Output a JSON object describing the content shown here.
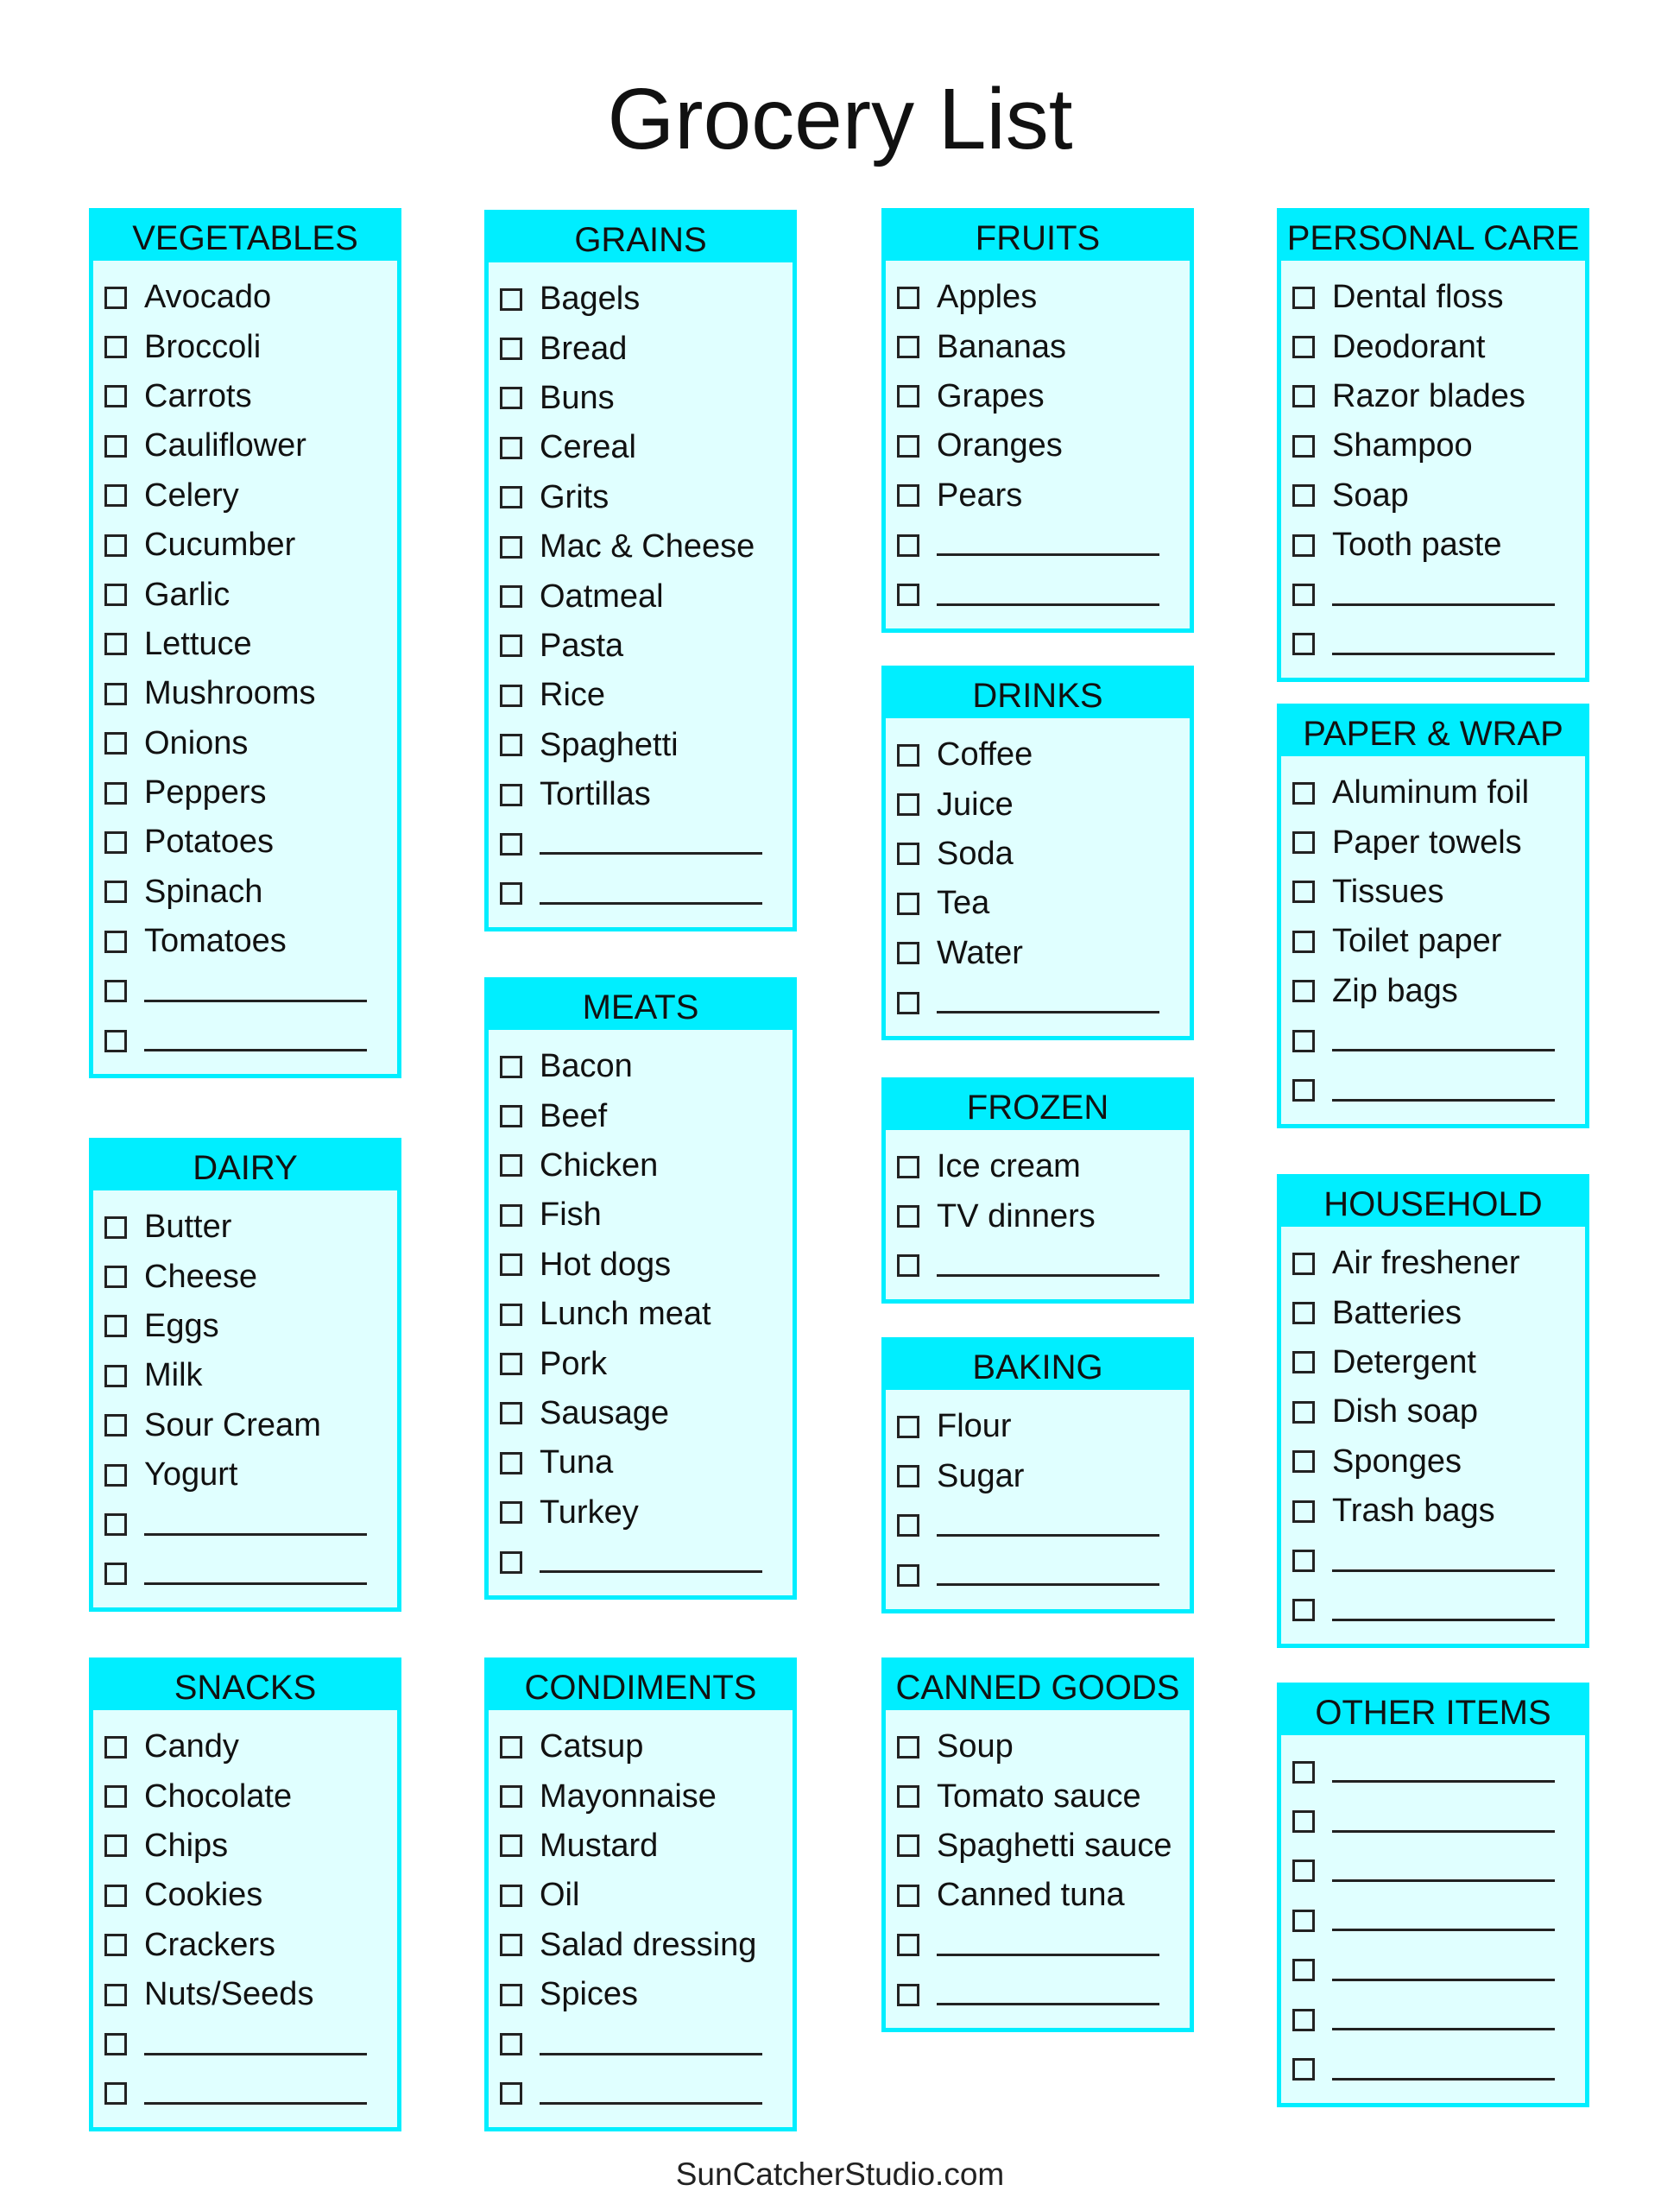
{
  "title": "Grocery List",
  "footer": "SunCatcherStudio.com",
  "colors": {
    "header": "#00eeff",
    "body": "#e0ffff",
    "border": "#00eeff"
  },
  "sections": [
    {
      "id": "vegetables",
      "title": "VEGETABLES",
      "items": [
        "Avocado",
        "Broccoli",
        "Carrots",
        "Cauliflower",
        "Celery",
        "Cucumber",
        "Garlic",
        "Lettuce",
        "Mushrooms",
        "Onions",
        "Peppers",
        "Potatoes",
        "Spinach",
        "Tomatoes",
        "",
        ""
      ]
    },
    {
      "id": "dairy",
      "title": "DAIRY",
      "items": [
        "Butter",
        "Cheese",
        "Eggs",
        "Milk",
        "Sour Cream",
        "Yogurt",
        "",
        ""
      ]
    },
    {
      "id": "snacks",
      "title": "SNACKS",
      "items": [
        "Candy",
        "Chocolate",
        "Chips",
        "Cookies",
        "Crackers",
        "Nuts/Seeds",
        "",
        ""
      ]
    },
    {
      "id": "grains",
      "title": "GRAINS",
      "items": [
        "Bagels",
        "Bread",
        "Buns",
        "Cereal",
        "Grits",
        "Mac & Cheese",
        "Oatmeal",
        "Pasta",
        "Rice",
        "Spaghetti",
        "Tortillas",
        "",
        ""
      ]
    },
    {
      "id": "meats",
      "title": "MEATS",
      "items": [
        "Bacon",
        "Beef",
        "Chicken",
        "Fish",
        "Hot dogs",
        "Lunch meat",
        "Pork",
        "Sausage",
        "Tuna",
        "Turkey",
        ""
      ]
    },
    {
      "id": "condiments",
      "title": "CONDIMENTS",
      "items": [
        "Catsup",
        "Mayonnaise",
        "Mustard",
        "Oil",
        "Salad dressing",
        "Spices",
        "",
        ""
      ]
    },
    {
      "id": "fruits",
      "title": "FRUITS",
      "items": [
        "Apples",
        "Bananas",
        "Grapes",
        "Oranges",
        "Pears",
        "",
        ""
      ]
    },
    {
      "id": "drinks",
      "title": "DRINKS",
      "items": [
        "Coffee",
        "Juice",
        "Soda",
        "Tea",
        "Water",
        ""
      ]
    },
    {
      "id": "frozen",
      "title": "FROZEN",
      "items": [
        "Ice cream",
        "TV dinners",
        ""
      ]
    },
    {
      "id": "baking",
      "title": "BAKING",
      "items": [
        "Flour",
        "Sugar",
        "",
        ""
      ]
    },
    {
      "id": "canned-goods",
      "title": "CANNED GOODS",
      "items": [
        "Soup",
        "Tomato sauce",
        "Spaghetti sauce",
        "Canned tuna",
        "",
        ""
      ]
    },
    {
      "id": "personal-care",
      "title": "PERSONAL CARE",
      "items": [
        "Dental floss",
        "Deodorant",
        "Razor blades",
        "Shampoo",
        "Soap",
        "Tooth paste",
        "",
        ""
      ]
    },
    {
      "id": "paper-wrap",
      "title": "PAPER & WRAP",
      "items": [
        "Aluminum foil",
        "Paper towels",
        "Tissues",
        "Toilet paper",
        "Zip bags",
        "",
        ""
      ]
    },
    {
      "id": "household",
      "title": "HOUSEHOLD",
      "items": [
        "Air freshener",
        "Batteries",
        "Detergent",
        "Dish soap",
        "Sponges",
        "Trash bags",
        "",
        ""
      ]
    },
    {
      "id": "other-items",
      "title": "OTHER ITEMS",
      "items": [
        "",
        "",
        "",
        "",
        "",
        "",
        ""
      ]
    }
  ]
}
